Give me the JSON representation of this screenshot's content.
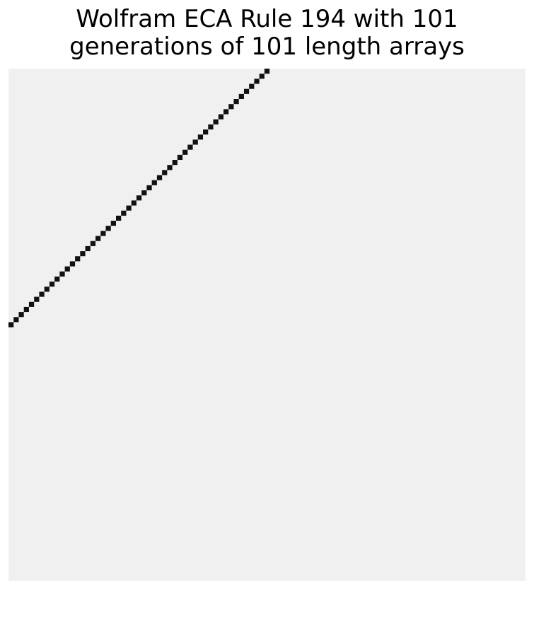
{
  "chart_data": {
    "type": "heatmap",
    "title_lines": [
      "Wolfram ECA Rule 194 with 101",
      "generations of 101 length arrays"
    ],
    "rule": 194,
    "generations": 101,
    "length": 101,
    "initial_live_cell_index": 50,
    "shift_per_generation": -1,
    "colors": {
      "background": "#f0f0f0",
      "live_cell": "#111111"
    }
  }
}
